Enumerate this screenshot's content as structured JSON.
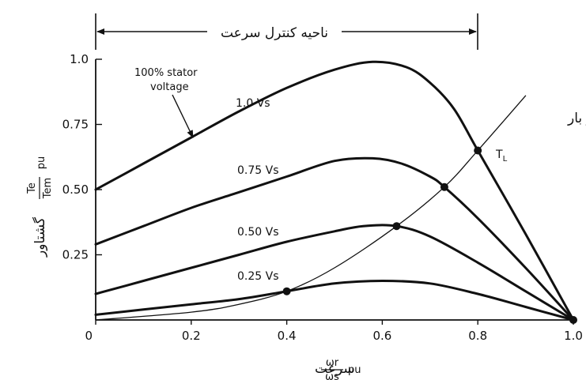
{
  "chart_data": {
    "type": "line",
    "title": "",
    "top_annotation": "ناحیه کنترل سرعت",
    "speed_control_region": [
      0,
      0.8
    ],
    "xlabel_text": "سرعت",
    "xlabel_fraction_num": "ωr",
    "xlabel_fraction_den": "ωs",
    "xlabel_unit": "pu",
    "ylabel_text": "گشتاور",
    "ylabel_fraction_num": "Te",
    "ylabel_fraction_den": "Tem",
    "ylabel_unit": "pu",
    "xlim": [
      0,
      1.0
    ],
    "ylim": [
      0,
      1.0
    ],
    "xticks": [
      0,
      0.2,
      0.4,
      0.6,
      0.8,
      1.0
    ],
    "xtick_labels": [
      "0",
      "0.2",
      "0.4",
      "0.6",
      "0.8",
      "1.0"
    ],
    "yticks": [
      0.25,
      0.5,
      0.75,
      1.0
    ],
    "ytick_labels": [
      "0.25",
      "0.50",
      "0.75",
      "1.0"
    ],
    "grid": false,
    "series": [
      {
        "name": "1.0 Vs",
        "x": [
          0,
          0.1,
          0.2,
          0.3,
          0.4,
          0.5,
          0.58,
          0.65,
          0.7,
          0.75,
          0.8,
          0.9,
          1.0
        ],
        "y": [
          0.5,
          0.6,
          0.7,
          0.8,
          0.89,
          0.96,
          0.99,
          0.97,
          0.91,
          0.81,
          0.65,
          0.33,
          0
        ]
      },
      {
        "name": "0.75 Vs",
        "x": [
          0,
          0.1,
          0.2,
          0.3,
          0.4,
          0.5,
          0.58,
          0.64,
          0.7,
          0.73,
          0.8,
          0.9,
          1.0
        ],
        "y": [
          0.29,
          0.36,
          0.43,
          0.49,
          0.55,
          0.61,
          0.62,
          0.6,
          0.55,
          0.51,
          0.39,
          0.2,
          0
        ]
      },
      {
        "name": "0.50 Vs",
        "x": [
          0,
          0.1,
          0.2,
          0.3,
          0.4,
          0.5,
          0.56,
          0.63,
          0.7,
          0.8,
          0.9,
          1.0
        ],
        "y": [
          0.1,
          0.15,
          0.2,
          0.25,
          0.3,
          0.34,
          0.36,
          0.36,
          0.32,
          0.22,
          0.11,
          0
        ]
      },
      {
        "name": "0.25 Vs",
        "x": [
          0,
          0.1,
          0.2,
          0.3,
          0.4,
          0.5,
          0.6,
          0.7,
          0.8,
          0.9,
          1.0
        ],
        "y": [
          0.02,
          0.04,
          0.06,
          0.08,
          0.11,
          0.14,
          0.15,
          0.14,
          0.1,
          0.05,
          0
        ]
      },
      {
        "name": "گشتاور بار",
        "style": "thin",
        "x": [
          0,
          0.2,
          0.3,
          0.4,
          0.5,
          0.63,
          0.73,
          0.8,
          0.9
        ],
        "y": [
          0,
          0.03,
          0.06,
          0.11,
          0.2,
          0.36,
          0.51,
          0.65,
          0.86
        ]
      }
    ],
    "intersection_points": [
      {
        "x": 0.4,
        "y": 0.11
      },
      {
        "x": 0.63,
        "y": 0.36
      },
      {
        "x": 0.73,
        "y": 0.51
      },
      {
        "x": 0.8,
        "y": 0.65
      },
      {
        "x": 1.0,
        "y": 0
      }
    ],
    "annotations": {
      "stator_note_line1": "100% stator",
      "stator_note_line2": "voltage",
      "tl_symbol": "T",
      "tl_subscript": "L",
      "load_torque": "گشتاور بار"
    }
  }
}
